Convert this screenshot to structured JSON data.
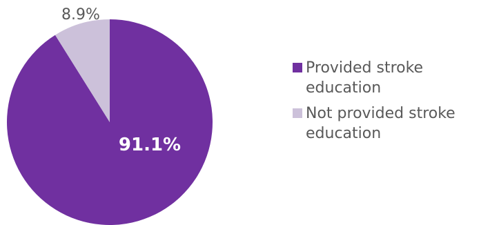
{
  "chart_data": {
    "type": "pie",
    "title": "",
    "series": [
      {
        "name": "Provided stroke\neducation",
        "value": 91.1,
        "label": "91.1%",
        "color": "#7030a0"
      },
      {
        "name": "Not provided stroke\neducation",
        "value": 8.9,
        "label": "8.9%",
        "color": "#ccc1da"
      }
    ],
    "legend": "right",
    "start_angle_deg": 0,
    "direction": "clockwise"
  }
}
